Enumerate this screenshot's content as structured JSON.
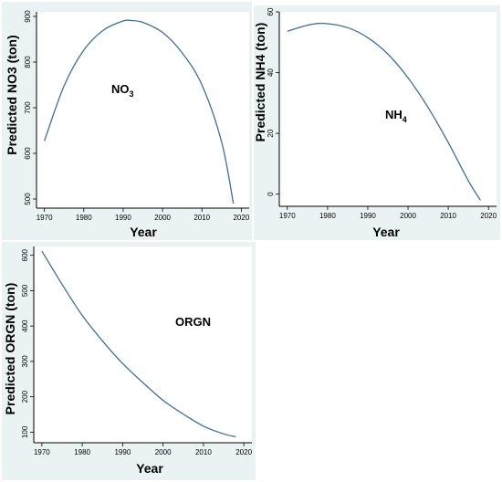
{
  "chart_data": [
    {
      "type": "line",
      "title": "",
      "xlabel": "Year",
      "ylabel": "Predicted NO3 (ton)",
      "annotation": {
        "text": "NO",
        "subscript": "3"
      },
      "xlim": [
        1968,
        2022
      ],
      "ylim": [
        480,
        910
      ],
      "xticks": [
        1970,
        1980,
        1990,
        2000,
        2010,
        2020
      ],
      "yticks": [
        500,
        600,
        700,
        800,
        900
      ],
      "grid": false,
      "line_color": "#3f6e96",
      "series": [
        {
          "x": [
            1970,
            1975,
            1980,
            1985,
            1990,
            1992,
            1995,
            2000,
            2005,
            2010,
            2015,
            2018
          ],
          "values": [
            627,
            748,
            826,
            870,
            890,
            891,
            887,
            865,
            820,
            750,
            625,
            490
          ]
        }
      ]
    },
    {
      "type": "line",
      "title": "",
      "xlabel": "Year",
      "ylabel": "Predicted NH4 (ton)",
      "annotation": {
        "text": "NH",
        "subscript": "4"
      },
      "xlim": [
        1968,
        2022
      ],
      "ylim": [
        -4,
        60
      ],
      "xticks": [
        1970,
        1980,
        1990,
        2000,
        2010,
        2020
      ],
      "yticks": [
        0,
        20,
        40,
        60
      ],
      "grid": false,
      "line_color": "#3f6e96",
      "series": [
        {
          "x": [
            1970,
            1975,
            1979,
            1985,
            1990,
            1995,
            2000,
            2005,
            2010,
            2015,
            2018
          ],
          "values": [
            53.6,
            55.6,
            56.2,
            54.8,
            51.5,
            46.1,
            38.3,
            28.5,
            17.0,
            4.4,
            -2.0
          ]
        }
      ]
    },
    {
      "type": "line",
      "title": "",
      "xlabel": "Year",
      "ylabel": "Predicted ORGN (ton)",
      "annotation": {
        "text": "ORGN",
        "subscript": ""
      },
      "xlim": [
        1968,
        2022
      ],
      "ylim": [
        70,
        625
      ],
      "xticks": [
        1970,
        1980,
        1990,
        2000,
        2010,
        2020
      ],
      "yticks": [
        100,
        200,
        300,
        400,
        500,
        600
      ],
      "grid": false,
      "line_color": "#3f6e96",
      "series": [
        {
          "x": [
            1970,
            1975,
            1980,
            1985,
            1990,
            1995,
            2000,
            2005,
            2010,
            2015,
            2018
          ],
          "values": [
            612,
            518,
            430,
            358,
            294,
            240,
            190,
            151,
            117,
            95,
            87
          ]
        }
      ]
    }
  ]
}
